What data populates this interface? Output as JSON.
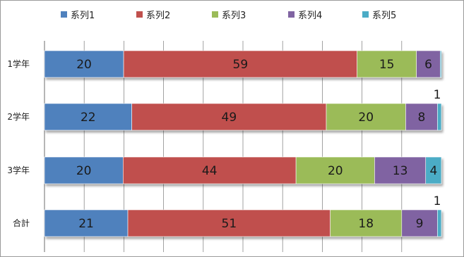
{
  "chart_data": {
    "type": "bar",
    "orientation": "horizontal",
    "stacked": "100%",
    "categories": [
      "1学年",
      "2学年",
      "3学年",
      "合計"
    ],
    "series": [
      {
        "name": "系列1",
        "values": [
          20,
          22,
          20,
          21
        ],
        "color": "#4F81BD"
      },
      {
        "name": "系列2",
        "values": [
          59,
          49,
          44,
          51
        ],
        "color": "#C0504D"
      },
      {
        "name": "系列3",
        "values": [
          15,
          20,
          20,
          18
        ],
        "color": "#9BBB59"
      },
      {
        "name": "系列4",
        "values": [
          6,
          8,
          13,
          9
        ],
        "color": "#8064A2"
      },
      {
        "name": "系列5",
        "values": [
          0.3,
          1,
          4,
          1
        ],
        "color": "#4BACC6"
      }
    ],
    "data_labels": [
      [
        "20",
        "59",
        "15",
        "6",
        ""
      ],
      [
        "22",
        "49",
        "20",
        "8",
        "1"
      ],
      [
        "20",
        "44",
        "20",
        "13",
        "4"
      ],
      [
        "21",
        "51",
        "18",
        "9",
        "1"
      ]
    ],
    "xlim": [
      0,
      100
    ],
    "grid": true,
    "legend_position": "top"
  }
}
